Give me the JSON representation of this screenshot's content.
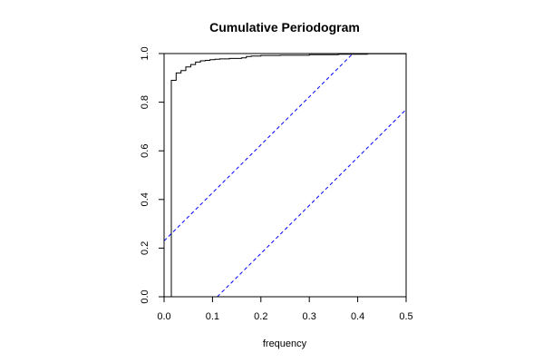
{
  "chart_data": {
    "type": "line",
    "title": "Cumulative Periodogram",
    "xlabel": "frequency",
    "ylabel": "",
    "xlim": [
      0,
      0.5
    ],
    "ylim": [
      0,
      1
    ],
    "x_ticks": [
      0.0,
      0.1,
      0.2,
      0.3,
      0.4,
      0.5
    ],
    "x_tick_labels": [
      "0.0",
      "0.1",
      "0.2",
      "0.3",
      "0.4",
      "0.5"
    ],
    "y_ticks": [
      0.0,
      0.2,
      0.4,
      0.6,
      0.8,
      1.0
    ],
    "y_tick_labels": [
      "0.0",
      "0.2",
      "0.4",
      "0.6",
      "0.8",
      "1.0"
    ],
    "grid": false,
    "series": [
      {
        "style": "step",
        "color": "#000000",
        "x": [
          0.015,
          0.015,
          0.025,
          0.035,
          0.045,
          0.055,
          0.065,
          0.075,
          0.085,
          0.095,
          0.105,
          0.115,
          0.135,
          0.16,
          0.17,
          0.18,
          0.2,
          0.24,
          0.3,
          0.36,
          0.42,
          0.5
        ],
        "y": [
          0.0,
          0.89,
          0.92,
          0.93,
          0.945,
          0.955,
          0.965,
          0.97,
          0.972,
          0.975,
          0.977,
          0.978,
          0.98,
          0.982,
          0.988,
          0.99,
          0.992,
          0.993,
          0.995,
          0.997,
          0.999,
          1.0
        ]
      },
      {
        "style": "dashed",
        "color": "#0000ff",
        "x": [
          0.0,
          0.39
        ],
        "y": [
          0.23,
          1.0
        ]
      },
      {
        "style": "dashed",
        "color": "#0000ff",
        "x": [
          0.11,
          0.5
        ],
        "y": [
          0.0,
          0.77
        ]
      }
    ]
  }
}
